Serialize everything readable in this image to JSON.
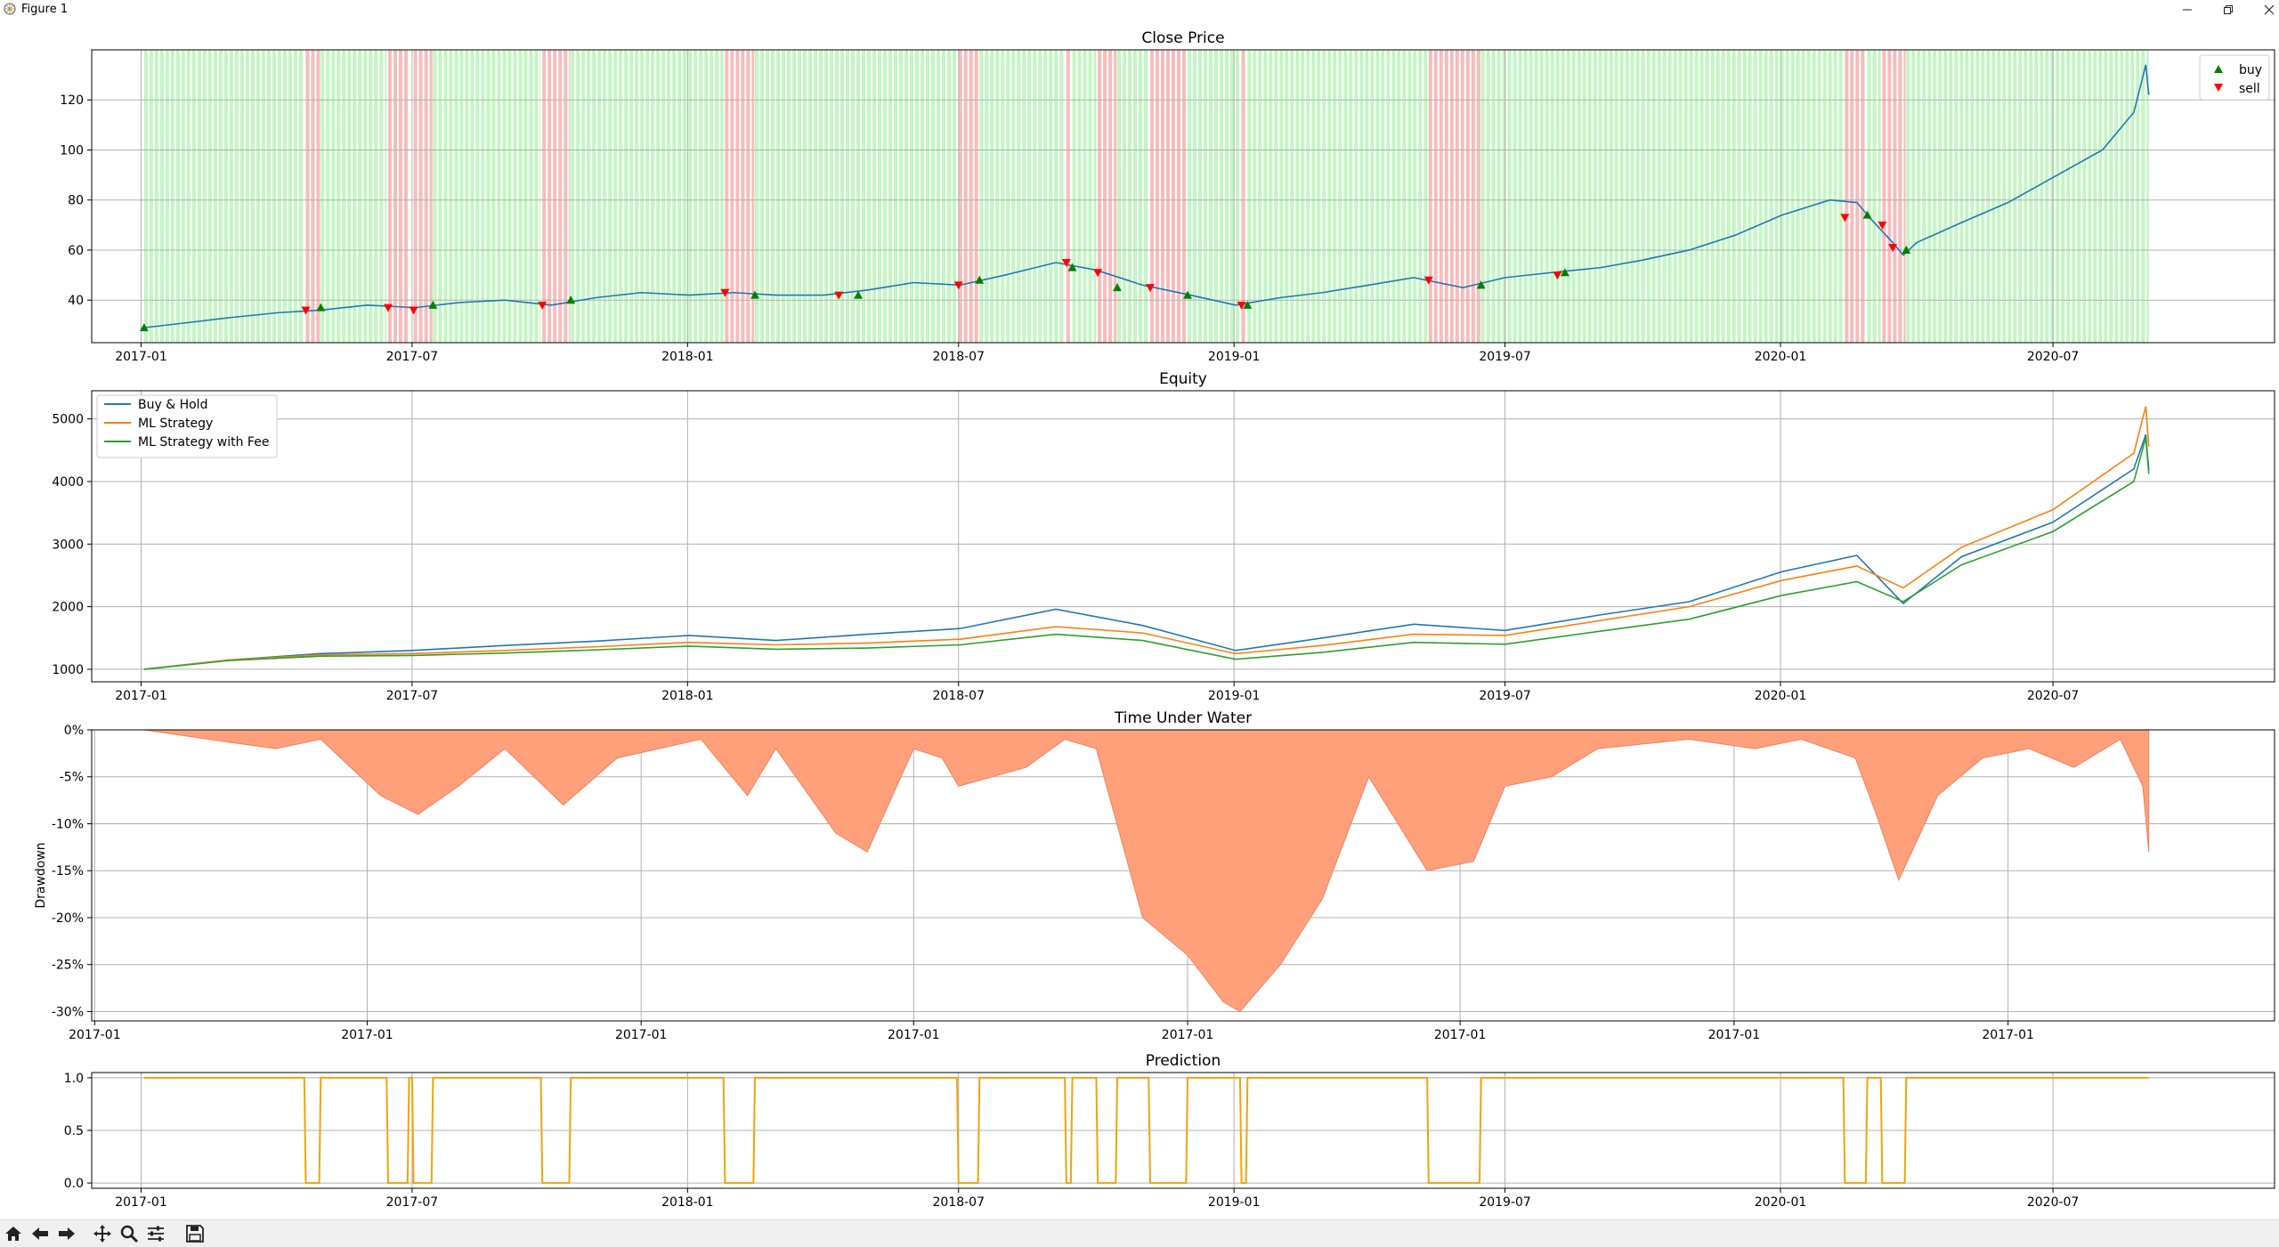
{
  "window": {
    "title": "Figure 1",
    "app_icon": "matplotlib-figure-icon"
  },
  "toolbar": {
    "buttons": [
      "home-icon",
      "back-icon",
      "forward-icon",
      "pan-icon",
      "zoom-icon",
      "configure-subplots-icon",
      "save-icon"
    ]
  },
  "colors": {
    "buy_hold": "#1f77b4",
    "ml": "#ff7f0e",
    "ml_fee": "#2ca02c",
    "drawdown": "#ffa07a",
    "prediction": "#f0a30a",
    "long_bg": "#90ee90",
    "short_bg": "#f4a0a0",
    "buy_marker": "#008000",
    "sell_marker": "#ff0000"
  },
  "chart_data": [
    {
      "type": "line",
      "title": "Close Price",
      "xlabel": "",
      "ylabel": "",
      "x_ticks": [
        "2017-01",
        "2017-07",
        "2018-01",
        "2018-07",
        "2019-01",
        "2019-07",
        "2020-01",
        "2020-07"
      ],
      "xlim": [
        "2016-11-29",
        "2020-11-26"
      ],
      "y_ticks": [
        "40",
        "60",
        "80",
        "100",
        "120"
      ],
      "ylim": [
        23,
        140
      ],
      "grid": true,
      "legend": {
        "position": "top-right",
        "entries": [
          "buy",
          "sell"
        ]
      },
      "series": [
        {
          "name": "",
          "x": [
            "2017-01-03",
            "2017-02-01",
            "2017-03-01",
            "2017-04-03",
            "2017-05-01",
            "2017-06-01",
            "2017-07-03",
            "2017-08-01",
            "2017-09-01",
            "2017-10-02",
            "2017-11-01",
            "2017-12-01",
            "2018-01-02",
            "2018-02-01",
            "2018-03-01",
            "2018-04-02",
            "2018-05-01",
            "2018-06-01",
            "2018-07-02",
            "2018-08-01",
            "2018-09-04",
            "2018-10-01",
            "2018-11-01",
            "2018-12-03",
            "2019-01-02",
            "2019-02-01",
            "2019-03-01",
            "2019-04-01",
            "2019-05-01",
            "2019-06-03",
            "2019-07-01",
            "2019-08-01",
            "2019-09-03",
            "2019-10-01",
            "2019-11-01",
            "2019-12-02",
            "2020-01-02",
            "2020-02-03",
            "2020-02-21",
            "2020-03-02",
            "2020-03-16",
            "2020-03-23",
            "2020-04-01",
            "2020-05-01",
            "2020-06-01",
            "2020-07-01",
            "2020-08-03",
            "2020-08-24",
            "2020-09-01",
            "2020-09-03"
          ],
          "values": [
            29,
            31,
            33,
            35,
            36,
            38,
            37,
            39,
            40,
            38,
            41,
            43,
            42,
            43,
            42,
            42,
            44,
            47,
            46,
            50,
            55,
            52,
            46,
            42,
            38,
            41,
            43,
            46,
            49,
            45,
            49,
            51,
            53,
            56,
            60,
            66,
            74,
            80,
            79,
            72,
            63,
            58,
            63,
            71,
            79,
            89,
            100,
            115,
            134,
            122
          ]
        }
      ],
      "long_spans": [
        [
          "2017-01-03",
          "2017-04-20"
        ],
        [
          "2017-05-01",
          "2017-06-14"
        ],
        [
          "2017-07-15",
          "2017-09-25"
        ],
        [
          "2017-10-15",
          "2018-01-25"
        ],
        [
          "2018-02-15",
          "2018-06-30"
        ],
        [
          "2018-07-15",
          "2018-09-10"
        ],
        [
          "2018-09-15",
          "2018-10-01"
        ],
        [
          "2018-10-15",
          "2018-11-05"
        ],
        [
          "2018-12-01",
          "2019-01-05"
        ],
        [
          "2019-01-10",
          "2019-05-10"
        ],
        [
          "2019-06-15",
          "2020-02-12"
        ],
        [
          "2020-02-28",
          "2020-03-08"
        ],
        [
          "2020-03-25",
          "2020-09-03"
        ]
      ],
      "short_spans": [
        [
          "2017-04-21",
          "2017-04-30"
        ],
        [
          "2017-06-15",
          "2017-06-28"
        ],
        [
          "2017-07-02",
          "2017-07-14"
        ],
        [
          "2017-09-26",
          "2017-10-14"
        ],
        [
          "2018-01-26",
          "2018-02-14"
        ],
        [
          "2018-07-01",
          "2018-07-14"
        ],
        [
          "2018-09-11",
          "2018-09-14"
        ],
        [
          "2018-10-02",
          "2018-10-14"
        ],
        [
          "2018-11-06",
          "2018-11-30"
        ],
        [
          "2019-01-06",
          "2019-01-09"
        ],
        [
          "2019-05-11",
          "2019-06-14"
        ],
        [
          "2020-02-13",
          "2020-02-27"
        ],
        [
          "2020-03-09",
          "2020-03-24"
        ]
      ],
      "buy_markers": [
        [
          "2017-01-03",
          29
        ],
        [
          "2017-05-01",
          37
        ],
        [
          "2017-07-15",
          38
        ],
        [
          "2017-10-15",
          40
        ],
        [
          "2018-02-15",
          42
        ],
        [
          "2018-04-25",
          42
        ],
        [
          "2018-07-15",
          48
        ],
        [
          "2018-09-15",
          53
        ],
        [
          "2018-10-15",
          45
        ],
        [
          "2018-12-01",
          42
        ],
        [
          "2019-01-10",
          38
        ],
        [
          "2019-06-15",
          46
        ],
        [
          "2019-08-10",
          51
        ],
        [
          "2020-02-28",
          74
        ],
        [
          "2020-03-25",
          60
        ]
      ],
      "sell_markers": [
        [
          "2017-04-21",
          36
        ],
        [
          "2017-06-15",
          37
        ],
        [
          "2017-07-02",
          36
        ],
        [
          "2017-09-26",
          38
        ],
        [
          "2018-01-26",
          43
        ],
        [
          "2018-04-12",
          42
        ],
        [
          "2018-07-01",
          46
        ],
        [
          "2018-09-11",
          55
        ],
        [
          "2018-10-02",
          51
        ],
        [
          "2018-11-06",
          45
        ],
        [
          "2019-01-06",
          38
        ],
        [
          "2019-05-11",
          48
        ],
        [
          "2019-08-05",
          50
        ],
        [
          "2020-02-13",
          73
        ],
        [
          "2020-03-09",
          70
        ],
        [
          "2020-03-16",
          61
        ]
      ]
    },
    {
      "type": "line",
      "title": "Equity",
      "xlabel": "",
      "ylabel": "",
      "x_ticks": [
        "2017-01",
        "2017-07",
        "2018-01",
        "2018-07",
        "2019-01",
        "2019-07",
        "2020-01",
        "2020-07"
      ],
      "xlim": [
        "2016-11-29",
        "2020-11-26"
      ],
      "y_ticks": [
        "1000",
        "2000",
        "3000",
        "4000",
        "5000"
      ],
      "ylim": [
        800,
        5450
      ],
      "grid": true,
      "legend": {
        "position": "top-left"
      },
      "x": [
        "2017-01-03",
        "2017-03-01",
        "2017-05-01",
        "2017-07-01",
        "2017-09-01",
        "2017-11-01",
        "2018-01-02",
        "2018-03-01",
        "2018-05-01",
        "2018-07-02",
        "2018-09-04",
        "2018-11-01",
        "2019-01-02",
        "2019-03-01",
        "2019-05-01",
        "2019-07-01",
        "2019-09-03",
        "2019-11-01",
        "2020-01-02",
        "2020-02-21",
        "2020-03-23",
        "2020-05-01",
        "2020-07-01",
        "2020-08-24",
        "2020-09-01",
        "2020-09-03"
      ],
      "series": [
        {
          "name": "Buy & Hold",
          "values": [
            1000,
            1150,
            1250,
            1300,
            1380,
            1450,
            1540,
            1460,
            1560,
            1650,
            1960,
            1700,
            1300,
            1500,
            1720,
            1620,
            1870,
            2080,
            2560,
            2820,
            2050,
            2800,
            3350,
            4200,
            4750,
            4180
          ]
        },
        {
          "name": "ML Strategy",
          "values": [
            1000,
            1150,
            1230,
            1250,
            1300,
            1360,
            1430,
            1390,
            1420,
            1480,
            1680,
            1580,
            1250,
            1380,
            1560,
            1540,
            1780,
            2000,
            2420,
            2650,
            2300,
            2950,
            3550,
            4450,
            5200,
            4560
          ]
        },
        {
          "name": "ML Strategy with Fee",
          "values": [
            1000,
            1140,
            1210,
            1220,
            1260,
            1310,
            1370,
            1320,
            1340,
            1390,
            1560,
            1460,
            1160,
            1270,
            1430,
            1400,
            1610,
            1800,
            2180,
            2400,
            2080,
            2670,
            3200,
            4000,
            4700,
            4120
          ]
        }
      ]
    },
    {
      "type": "area",
      "title": "Time Under Water",
      "xlabel": "",
      "ylabel": "Drawdown",
      "x_ticks": [
        "2017-01",
        "2017-01",
        "2017-01",
        "2017-01",
        "2017-01",
        "2017-01",
        "2017-01",
        "2017-01"
      ],
      "xlim": [
        "2016-11-29",
        "2020-11-26"
      ],
      "y_ticks": [
        "0%",
        "-5%",
        "-10%",
        "-15%",
        "-20%",
        "-25%",
        "-30%"
      ],
      "ylim": [
        -31,
        0
      ],
      "grid": true,
      "series": [
        {
          "name": "",
          "x": [
            "2017-01-03",
            "2017-02-15",
            "2017-04-01",
            "2017-05-01",
            "2017-06-10",
            "2017-07-05",
            "2017-08-01",
            "2017-09-01",
            "2017-10-10",
            "2017-11-15",
            "2018-01-10",
            "2018-02-10",
            "2018-03-01",
            "2018-04-10",
            "2018-05-01",
            "2018-06-01",
            "2018-06-20",
            "2018-07-01",
            "2018-08-15",
            "2018-09-10",
            "2018-10-01",
            "2018-11-01",
            "2018-12-01",
            "2018-12-25",
            "2019-01-05",
            "2019-02-01",
            "2019-03-01",
            "2019-04-01",
            "2019-05-10",
            "2019-06-10",
            "2019-07-01",
            "2019-08-01",
            "2019-09-01",
            "2019-11-01",
            "2019-12-15",
            "2020-01-15",
            "2020-02-20",
            "2020-03-05",
            "2020-03-20",
            "2020-04-15",
            "2020-05-15",
            "2020-06-15",
            "2020-07-15",
            "2020-08-15",
            "2020-08-30",
            "2020-09-03"
          ],
          "values": [
            0,
            -1,
            -2,
            -1,
            -7,
            -9,
            -6,
            -2,
            -8,
            -3,
            -1,
            -7,
            -2,
            -11,
            -13,
            -2,
            -3,
            -6,
            -4,
            -1,
            -2,
            -20,
            -24,
            -29,
            -30,
            -25,
            -18,
            -5,
            -15,
            -14,
            -6,
            -5,
            -2,
            -1,
            -2,
            -1,
            -3,
            -9,
            -16,
            -7,
            -3,
            -2,
            -4,
            -1,
            -6,
            -13
          ]
        }
      ]
    },
    {
      "type": "line",
      "title": "Prediction",
      "xlabel": "",
      "ylabel": "",
      "x_ticks": [
        "2017-01",
        "2017-07",
        "2018-01",
        "2018-07",
        "2019-01",
        "2019-07",
        "2020-01",
        "2020-07"
      ],
      "xlim": [
        "2016-11-29",
        "2020-11-26"
      ],
      "y_ticks": [
        "0.0",
        "0.5",
        "1.0"
      ],
      "ylim": [
        -0.05,
        1.05
      ],
      "grid": true,
      "series": [
        {
          "name": "",
          "x": [
            "2017-01-03",
            "2017-04-20",
            "2017-04-21",
            "2017-04-30",
            "2017-05-01",
            "2017-06-14",
            "2017-06-15",
            "2017-06-28",
            "2017-06-29",
            "2017-07-01",
            "2017-07-02",
            "2017-07-14",
            "2017-07-15",
            "2017-09-25",
            "2017-09-26",
            "2017-10-14",
            "2017-10-15",
            "2018-01-25",
            "2018-01-26",
            "2018-02-14",
            "2018-02-15",
            "2018-06-30",
            "2018-07-01",
            "2018-07-14",
            "2018-07-15",
            "2018-09-10",
            "2018-09-11",
            "2018-09-14",
            "2018-09-15",
            "2018-10-01",
            "2018-10-02",
            "2018-10-14",
            "2018-10-15",
            "2018-11-05",
            "2018-11-06",
            "2018-11-30",
            "2018-12-01",
            "2019-01-05",
            "2019-01-06",
            "2019-01-09",
            "2019-01-10",
            "2019-05-10",
            "2019-05-11",
            "2019-06-14",
            "2019-06-15",
            "2020-02-12",
            "2020-02-13",
            "2020-02-27",
            "2020-02-28",
            "2020-03-08",
            "2020-03-09",
            "2020-03-24",
            "2020-03-25",
            "2020-09-03"
          ],
          "values": [
            1,
            1,
            0,
            0,
            1,
            1,
            0,
            0,
            1,
            1,
            0,
            0,
            1,
            1,
            0,
            0,
            1,
            1,
            0,
            0,
            1,
            1,
            0,
            0,
            1,
            1,
            0,
            0,
            1,
            1,
            0,
            0,
            1,
            1,
            0,
            0,
            1,
            1,
            0,
            0,
            1,
            1,
            0,
            0,
            1,
            1,
            0,
            0,
            1,
            1,
            0,
            0,
            1,
            1
          ]
        }
      ]
    }
  ]
}
